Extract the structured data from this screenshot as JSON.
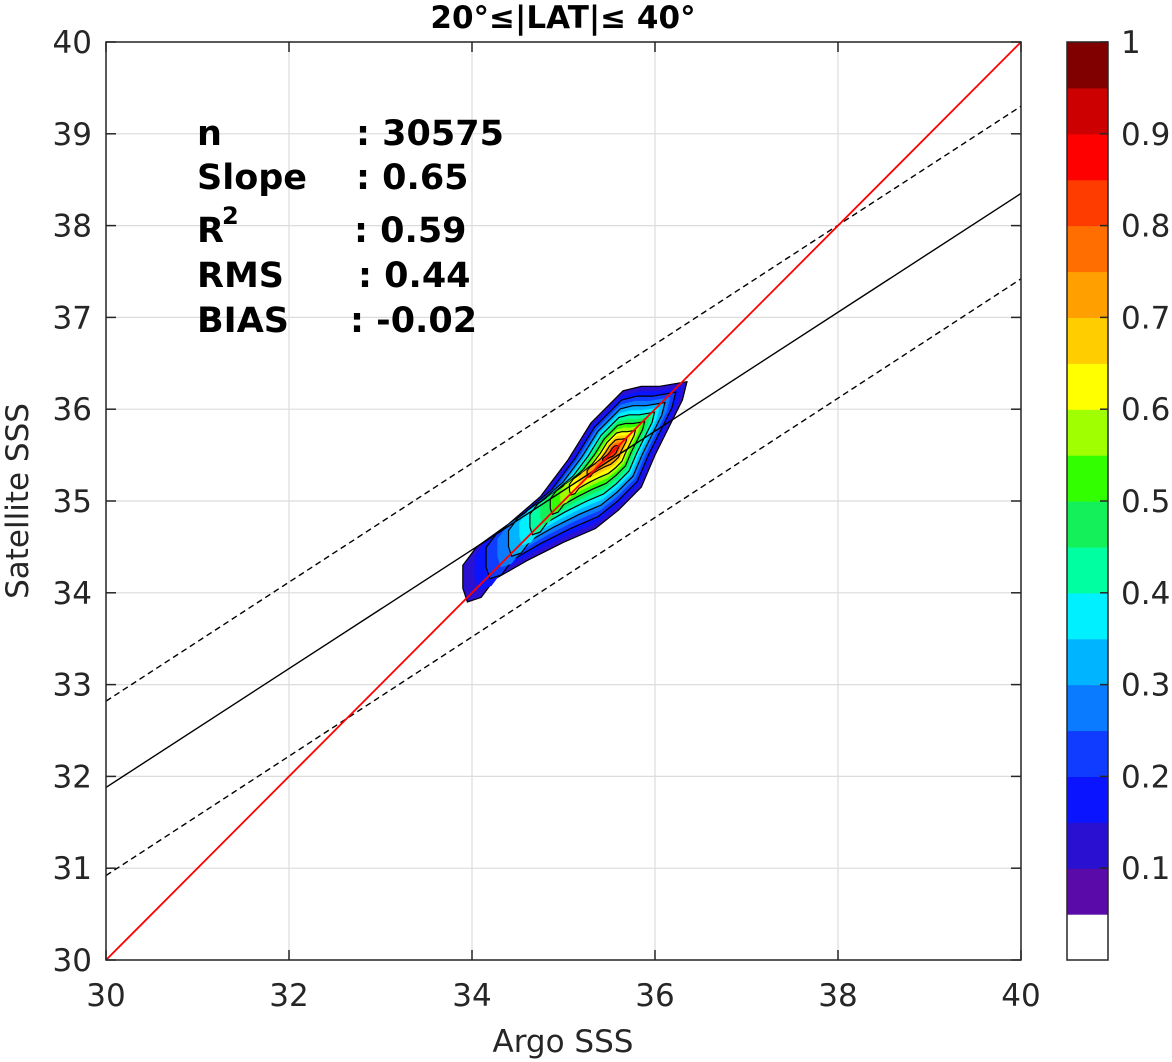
{
  "chart_data": {
    "type": "contour",
    "title": "20°≤|LAT|≤ 40°",
    "xlabel": "Argo SSS",
    "ylabel": "Satellite SSS",
    "xlim": [
      30,
      40
    ],
    "ylim": [
      30,
      40
    ],
    "xticks": [
      30,
      32,
      34,
      36,
      38,
      40
    ],
    "yticks": [
      30,
      31,
      32,
      33,
      34,
      35,
      36,
      37,
      38,
      39,
      40
    ],
    "grid": true,
    "stats": {
      "n_label": "n",
      "n_value": ": 30575",
      "slope_label": "Slope",
      "slope_value": ": 0.65",
      "r2_label": "R",
      "r2_sup": "2",
      "r2_value": ": 0.59",
      "rms_label": "RMS",
      "rms_value": ": 0.44",
      "bias_label": "BIAS",
      "bias_value": ": -0.02"
    },
    "lines": {
      "identity": {
        "color": "#ff0000",
        "points": [
          [
            30,
            30
          ],
          [
            40,
            40
          ]
        ]
      },
      "fit": {
        "color": "#000000",
        "style": "solid",
        "points": [
          [
            30,
            31.88
          ],
          [
            40,
            38.35
          ]
        ]
      },
      "upper_bound": {
        "color": "#000000",
        "style": "dashed",
        "points": [
          [
            30,
            32.82
          ],
          [
            40,
            39.3
          ]
        ]
      },
      "lower_bound": {
        "color": "#000000",
        "style": "dashed",
        "points": [
          [
            30,
            30.92
          ],
          [
            40,
            37.42
          ]
        ]
      }
    },
    "density": {
      "peak": [
        35.55,
        35.55
      ],
      "outer_contour": [
        [
          33.95,
          33.9
        ],
        [
          33.9,
          34.05
        ],
        [
          33.9,
          34.3
        ],
        [
          34.05,
          34.5
        ],
        [
          34.4,
          34.75
        ],
        [
          34.75,
          35.05
        ],
        [
          35.05,
          35.45
        ],
        [
          35.3,
          35.85
        ],
        [
          35.65,
          36.2
        ],
        [
          35.85,
          36.25
        ],
        [
          36.05,
          36.25
        ],
        [
          36.35,
          36.3
        ],
        [
          36.3,
          36.1
        ],
        [
          36.15,
          35.8
        ],
        [
          36.0,
          35.5
        ],
        [
          35.85,
          35.15
        ],
        [
          35.6,
          34.9
        ],
        [
          35.35,
          34.7
        ],
        [
          35.0,
          34.55
        ],
        [
          34.6,
          34.35
        ],
        [
          34.25,
          34.15
        ],
        [
          34.1,
          33.95
        ]
      ],
      "levels": [
        0.1,
        0.2,
        0.3,
        0.4,
        0.5,
        0.6,
        0.7,
        0.8,
        0.9
      ]
    },
    "colorbar": {
      "ticks": [
        "0.1",
        "0.2",
        "0.3",
        "0.4",
        "0.5",
        "0.6",
        "0.7",
        "0.8",
        "0.9",
        "1"
      ],
      "colors": [
        "#ffffff",
        "#5a0aa8",
        "#2a10d0",
        "#0b14ff",
        "#0f3cff",
        "#0a7aff",
        "#00b4ff",
        "#00f0ff",
        "#00ffa0",
        "#14f05a",
        "#32ff00",
        "#a0ff00",
        "#ffff00",
        "#ffcd00",
        "#ff9f00",
        "#ff6e00",
        "#ff3c00",
        "#ff0000",
        "#cc0000",
        "#800000"
      ]
    }
  }
}
